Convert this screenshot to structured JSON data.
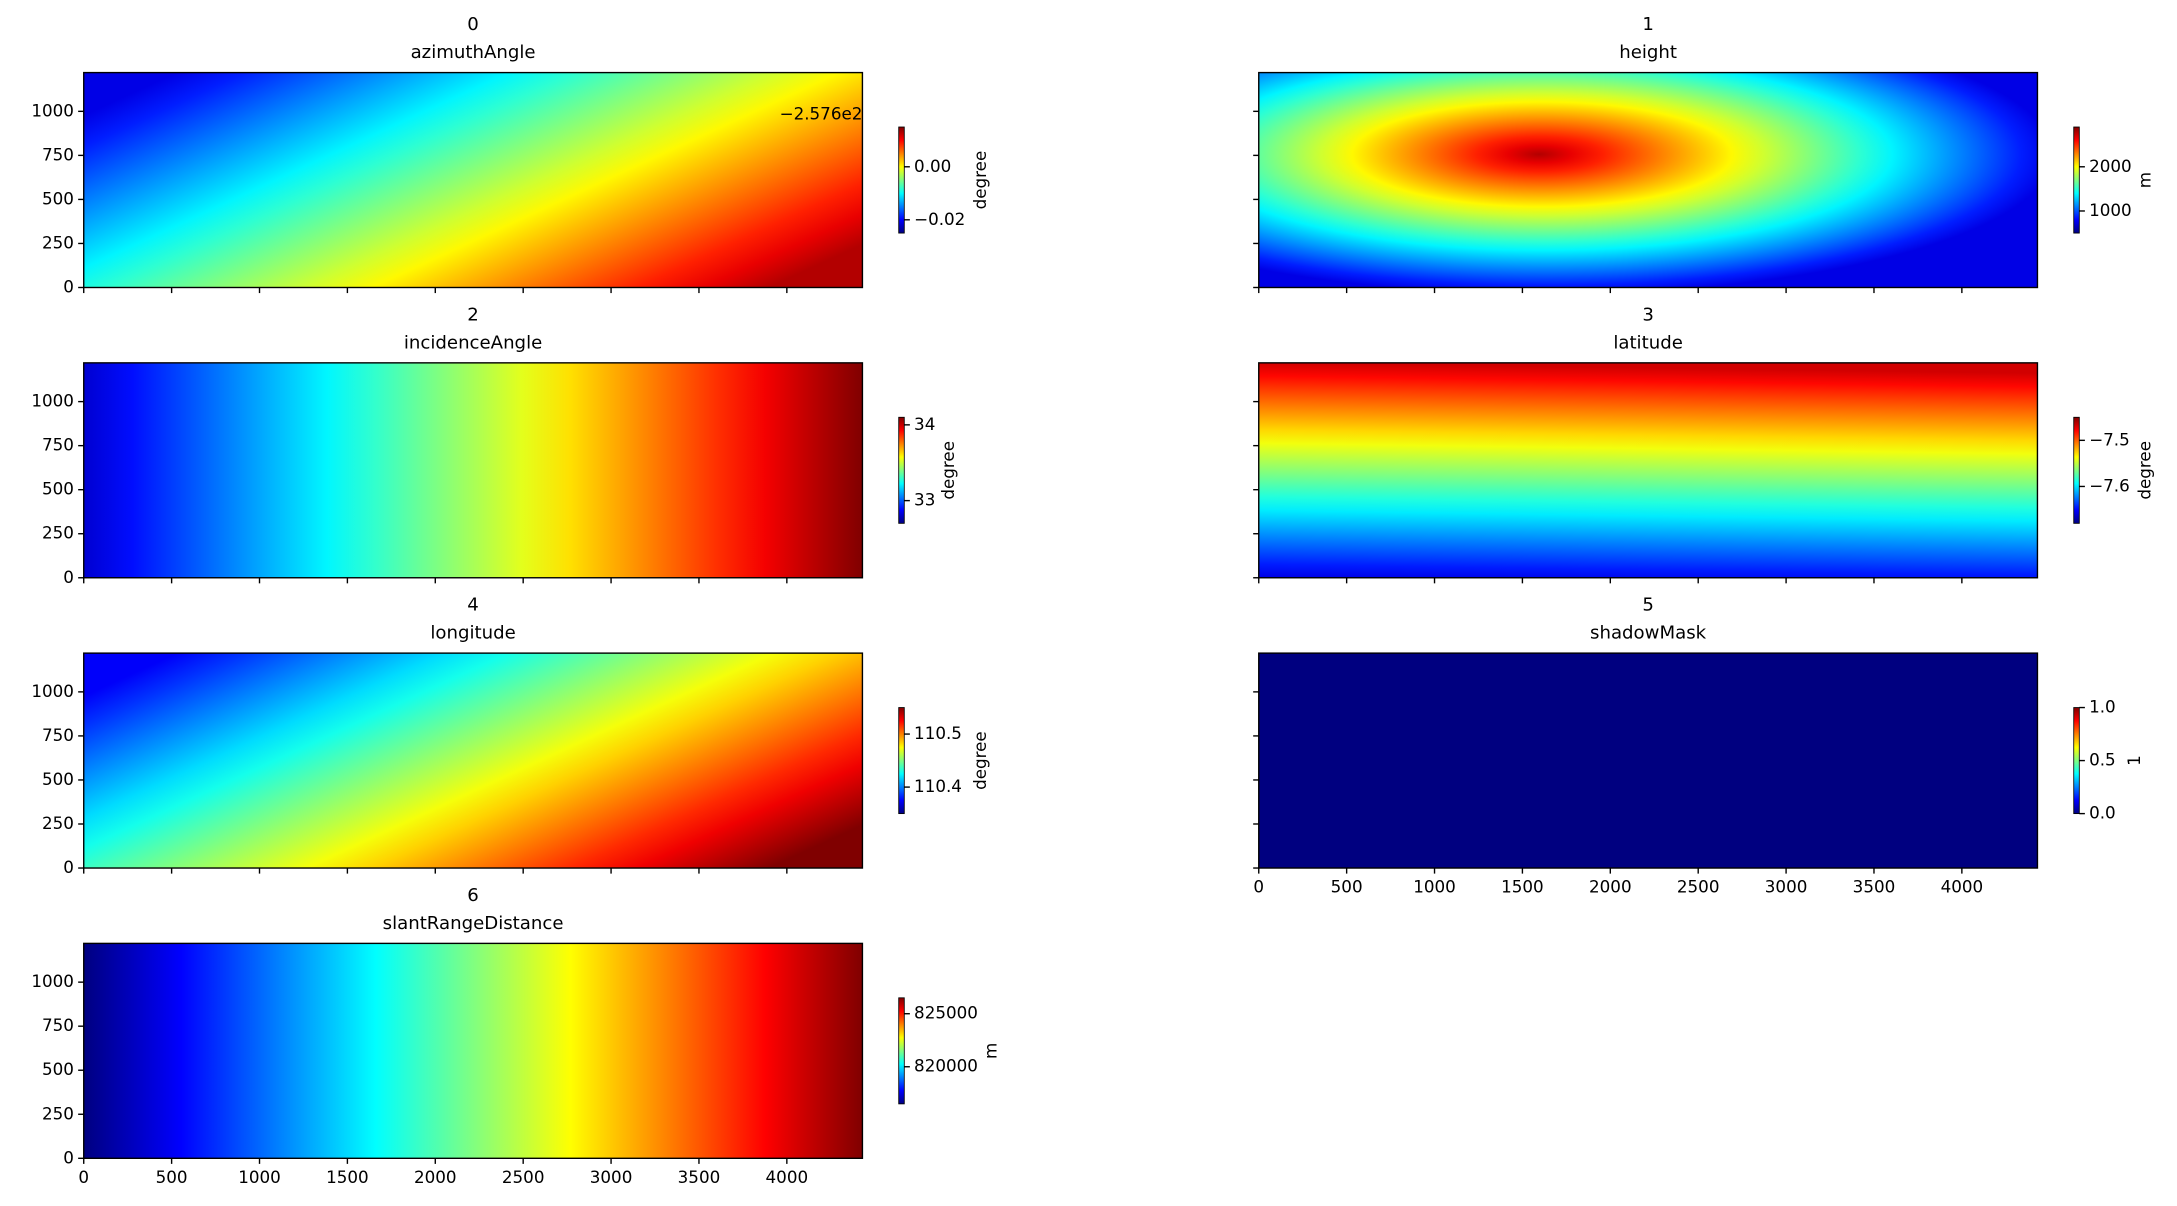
{
  "chart_data": [
    {
      "type": "heatmap",
      "title": "0",
      "subtitle": "azimuthAngle",
      "colormap": "jet",
      "xlim": [
        0,
        4430
      ],
      "xticks": [
        0,
        500,
        1000,
        1500,
        2000,
        2500,
        3000,
        3500,
        4000
      ],
      "ylim": [
        0,
        1220
      ],
      "yticks": [
        0,
        250,
        500,
        750,
        1000
      ],
      "clim": [
        -0.025,
        0.015
      ],
      "cticks": [
        {
          "value": -0.02,
          "label": "−0.02"
        },
        {
          "value": 0,
          "label": "0.00"
        }
      ],
      "offset_text": "−2.576e2",
      "colorbar_label": "degree"
    },
    {
      "type": "heatmap",
      "title": "1",
      "subtitle": "height",
      "colormap": "jet",
      "xlim": [
        0,
        4430
      ],
      "xticks": [
        0,
        500,
        1000,
        1500,
        2000,
        2500,
        3000,
        3500,
        4000
      ],
      "ylim": [
        0,
        1220
      ],
      "yticks": [
        0,
        250,
        500,
        750,
        1000
      ],
      "clim": [
        500,
        2900
      ],
      "cticks": [
        1000,
        2000
      ],
      "colorbar_label": "m"
    },
    {
      "type": "heatmap",
      "title": "2",
      "subtitle": "incidenceAngle",
      "colormap": "jet",
      "xlim": [
        0,
        4430
      ],
      "xticks": [
        0,
        500,
        1000,
        1500,
        2000,
        2500,
        3000,
        3500,
        4000
      ],
      "ylim": [
        0,
        1220
      ],
      "yticks": [
        0,
        250,
        500,
        750,
        1000
      ],
      "clim": [
        32.7,
        34.1
      ],
      "cticks": [
        33,
        34
      ],
      "colorbar_label": "degree"
    },
    {
      "type": "heatmap",
      "title": "3",
      "subtitle": "latitude",
      "colormap": "jet",
      "xlim": [
        0,
        4430
      ],
      "xticks": [
        0,
        500,
        1000,
        1500,
        2000,
        2500,
        3000,
        3500,
        4000
      ],
      "ylim": [
        0,
        1220
      ],
      "yticks": [
        0,
        250,
        500,
        750,
        1000
      ],
      "clim": [
        -7.68,
        -7.45
      ],
      "cticks": [
        {
          "value": -7.6,
          "label": "−7.6"
        },
        {
          "value": -7.5,
          "label": "−7.5"
        }
      ],
      "colorbar_label": "degree"
    },
    {
      "type": "heatmap",
      "title": "4",
      "subtitle": "longitude",
      "colormap": "jet",
      "xlim": [
        0,
        4430
      ],
      "xticks": [
        0,
        500,
        1000,
        1500,
        2000,
        2500,
        3000,
        3500,
        4000
      ],
      "ylim": [
        0,
        1220
      ],
      "yticks": [
        0,
        250,
        500,
        750,
        1000
      ],
      "clim": [
        110.35,
        110.55
      ],
      "cticks": [
        110.4,
        110.5
      ],
      "colorbar_label": "degree"
    },
    {
      "type": "heatmap",
      "title": "5",
      "subtitle": "shadowMask",
      "colormap": "jet",
      "xlim": [
        0,
        4430
      ],
      "xticks": [
        0,
        500,
        1000,
        1500,
        2000,
        2500,
        3000,
        3500,
        4000
      ],
      "ylim": [
        0,
        1220
      ],
      "yticks": [
        0,
        250,
        500,
        750,
        1000
      ],
      "clim": [
        0,
        1
      ],
      "cticks": [
        {
          "value": 0,
          "label": "0.0"
        },
        {
          "value": 0.5,
          "label": "0.5"
        },
        {
          "value": 1,
          "label": "1.0"
        }
      ],
      "colorbar_label": "1"
    },
    {
      "type": "heatmap",
      "title": "6",
      "subtitle": "slantRangeDistance",
      "colormap": "jet",
      "xlim": [
        0,
        4430
      ],
      "xticks": [
        0,
        500,
        1000,
        1500,
        2000,
        2500,
        3000,
        3500,
        4000
      ],
      "ylim": [
        0,
        1220
      ],
      "yticks": [
        0,
        250,
        500,
        750,
        1000
      ],
      "clim": [
        816500,
        826500
      ],
      "cticks": [
        820000,
        825000
      ],
      "colorbar_label": "m"
    }
  ]
}
